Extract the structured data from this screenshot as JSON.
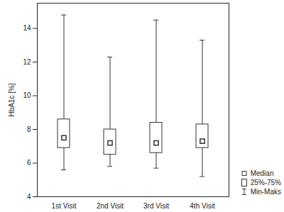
{
  "chart_data": {
    "type": "box",
    "y_label": "HbA1c [%]",
    "categories": [
      "1st Visit",
      "2nd Visit",
      "3rd Visit",
      "4th Visit"
    ],
    "min": [
      5.6,
      5.8,
      5.7,
      5.2
    ],
    "q1": [
      6.9,
      6.5,
      6.6,
      6.9
    ],
    "median": [
      7.5,
      7.2,
      7.2,
      7.3
    ],
    "q3": [
      8.6,
      8.0,
      8.4,
      8.3
    ],
    "max": [
      14.8,
      12.3,
      14.5,
      13.3
    ],
    "ylim": [
      4,
      15.5
    ],
    "yticks": [
      4,
      6,
      8,
      10,
      12,
      14
    ],
    "grid": false,
    "color": "#333333",
    "legend": "bottom right",
    "legend_labels": {
      "median": "Median",
      "box": "25%-75%",
      "whiskers": "Min-Maks"
    }
  }
}
